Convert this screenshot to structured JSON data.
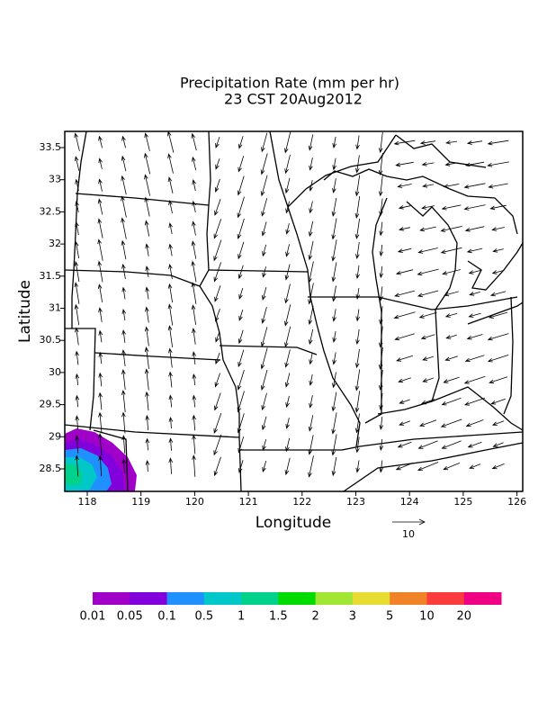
{
  "title": [
    "Precipitation Rate (mm per hr)",
    "23 CST 20Aug2012"
  ],
  "axes": {
    "x_label": "Longitude",
    "y_label": "Latitude",
    "x_ticks": [
      "118",
      "119",
      "120",
      "121",
      "122",
      "123",
      "124",
      "125",
      "126"
    ],
    "y_ticks": [
      "28.5",
      "29",
      "29.5",
      "30",
      "30.5",
      "31",
      "31.5",
      "32",
      "32.5",
      "33",
      "33.5"
    ]
  },
  "vector_scale": "10",
  "colorbar": {
    "colors": [
      "#a000c8",
      "#8200dc",
      "#1e90ff",
      "#00c8c8",
      "#00d28c",
      "#00dc00",
      "#a0e632",
      "#e6dc32",
      "#f08228",
      "#fa3c3c",
      "#f00082"
    ],
    "labels": [
      "0.01",
      "0.05",
      "0.1",
      "0.5",
      "1",
      "1.5",
      "2",
      "3",
      "5",
      "10",
      "20"
    ]
  }
}
